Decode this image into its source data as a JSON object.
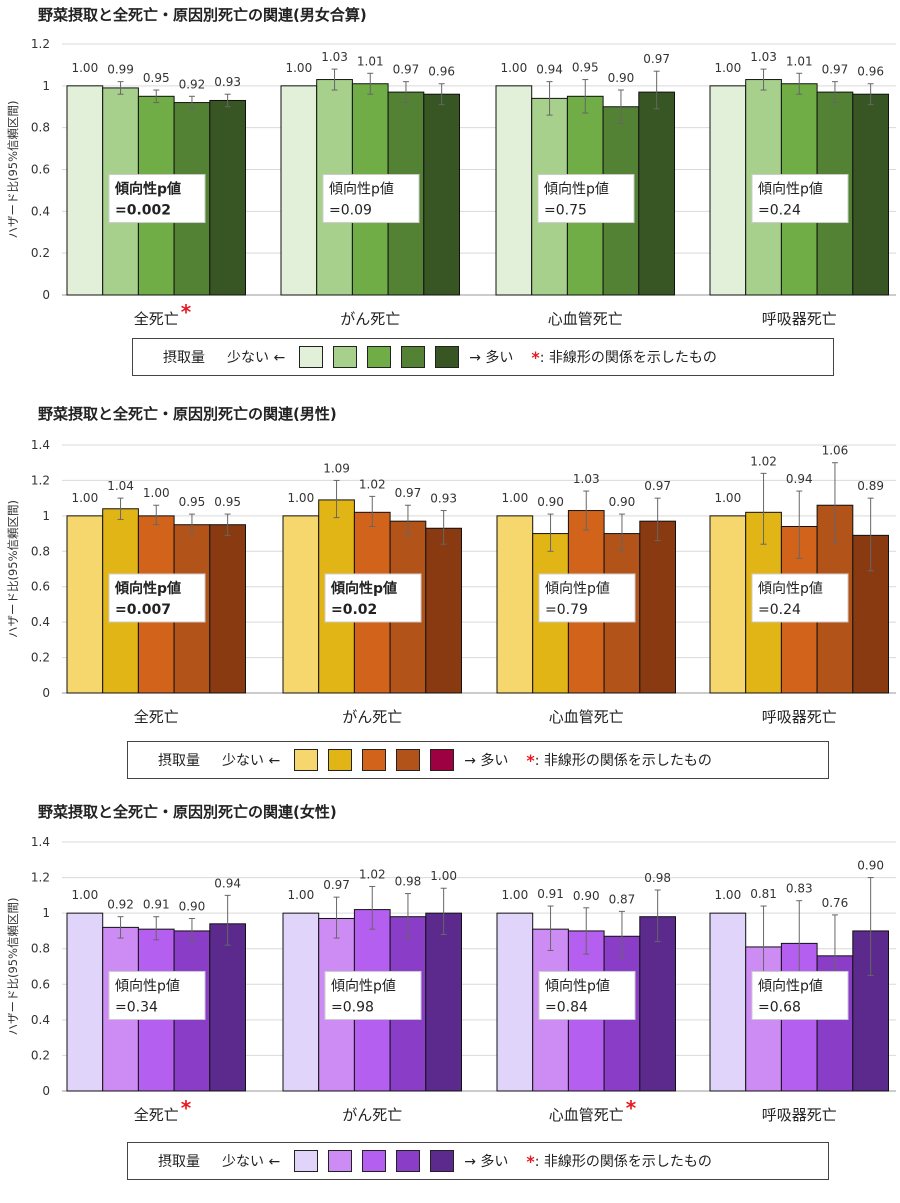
{
  "panels": [
    {
      "title": "野菜摂取と全死亡・原因別死亡の関連(男女合算)",
      "ylabel": "ハザード比(95%信頼区間)",
      "colors": [
        "#e2efd9",
        "#a8d08d",
        "#70ad47",
        "#548235",
        "#375623"
      ],
      "legend": {
        "label": "摂取量",
        "low": "少ない ←",
        "high": "→ 多い",
        "star": "*",
        "note": ": 非線形の関係を示したもの"
      },
      "chart_data": {
        "type": "bar",
        "categories": [
          "全死亡",
          "がん死亡",
          "心血管死亡",
          "呼吸器死亡"
        ],
        "ylim": [
          0,
          1.2
        ],
        "yticks": [
          "0",
          "0.2",
          "0.4",
          "0.6",
          "0.8",
          "1",
          "1.2"
        ],
        "values": [
          [
            1.0,
            0.99,
            0.95,
            0.92,
            0.93
          ],
          [
            1.0,
            1.03,
            1.01,
            0.97,
            0.96
          ],
          [
            1.0,
            0.94,
            0.95,
            0.9,
            0.97
          ],
          [
            1.0,
            1.03,
            1.01,
            0.97,
            0.96
          ]
        ],
        "labels": [
          [
            "1.00",
            "0.99",
            "0.95",
            "0.92",
            "0.93"
          ],
          [
            "1.00",
            "1.03",
            "1.01",
            "0.97",
            "0.96"
          ],
          [
            "1.00",
            "0.94",
            "0.95",
            "0.90",
            "0.97"
          ],
          [
            "1.00",
            "1.03",
            "1.01",
            "0.97",
            "0.96"
          ]
        ],
        "ci_low": [
          [
            null,
            0.96,
            0.92,
            0.89,
            0.9
          ],
          [
            null,
            0.98,
            0.96,
            0.92,
            0.91
          ],
          [
            null,
            0.86,
            0.87,
            0.82,
            0.89
          ],
          [
            null,
            0.98,
            0.96,
            0.92,
            0.91
          ]
        ],
        "ci_high": [
          [
            null,
            1.02,
            0.98,
            0.95,
            0.96
          ],
          [
            null,
            1.08,
            1.06,
            1.02,
            1.01
          ],
          [
            null,
            1.02,
            1.03,
            0.98,
            1.07
          ],
          [
            null,
            1.08,
            1.06,
            1.02,
            1.01
          ]
        ],
        "trend": [
          {
            "label": "傾向性p値",
            "value": "=0.002",
            "bold": true
          },
          {
            "label": "傾向性p値",
            "value": "=0.09",
            "bold": false
          },
          {
            "label": "傾向性p値",
            "value": "=0.75",
            "bold": false
          },
          {
            "label": "傾向性p値",
            "value": "=0.24",
            "bold": false
          }
        ],
        "nonlinear": [
          true,
          false,
          false,
          false
        ]
      }
    },
    {
      "title": "野菜摂取と全死亡・原因別死亡の関連(男性)",
      "ylabel": "ハザード比(95%信頼区間)",
      "colors": [
        "#f5d76e",
        "#e2b516",
        "#d2631b",
        "#b2531a",
        "#8a3a10"
      ],
      "legend_colors": [
        "#f5d76e",
        "#e2b516",
        "#d2631b",
        "#b2531a",
        "#9e0142"
      ],
      "legend": {
        "label": "摂取量",
        "low": "少ない ←",
        "high": "→ 多い",
        "star": "*",
        "note": ": 非線形の関係を示したもの"
      },
      "chart_data": {
        "type": "bar",
        "categories": [
          "全死亡",
          "がん死亡",
          "心血管死亡",
          "呼吸器死亡"
        ],
        "ylim": [
          0,
          1.4
        ],
        "yticks": [
          "0",
          "0.2",
          "0.4",
          "0.6",
          "0.8",
          "1",
          "1.2",
          "1.4"
        ],
        "values": [
          [
            1.0,
            1.04,
            1.0,
            0.95,
            0.95
          ],
          [
            1.0,
            1.09,
            1.02,
            0.97,
            0.93
          ],
          [
            1.0,
            0.9,
            1.03,
            0.9,
            0.97
          ],
          [
            1.0,
            1.02,
            0.94,
            1.06,
            0.89
          ]
        ],
        "labels": [
          [
            "1.00",
            "1.04",
            "1.00",
            "0.95",
            "0.95"
          ],
          [
            "1.00",
            "1.09",
            "1.02",
            "0.97",
            "0.93"
          ],
          [
            "1.00",
            "0.90",
            "1.03",
            "0.90",
            "0.97"
          ],
          [
            "1.00",
            "1.02",
            "0.94",
            "1.06",
            "0.89"
          ]
        ],
        "ci_low": [
          [
            null,
            0.98,
            0.95,
            0.9,
            0.89
          ],
          [
            null,
            0.99,
            0.94,
            0.89,
            0.84
          ],
          [
            null,
            0.8,
            0.92,
            0.8,
            0.86
          ],
          [
            null,
            0.84,
            0.76,
            0.85,
            0.69
          ]
        ],
        "ci_high": [
          [
            null,
            1.1,
            1.06,
            1.01,
            1.01
          ],
          [
            null,
            1.2,
            1.11,
            1.06,
            1.03
          ],
          [
            null,
            1.01,
            1.14,
            1.01,
            1.1
          ],
          [
            null,
            1.24,
            1.14,
            1.3,
            1.1
          ]
        ],
        "trend": [
          {
            "label": "傾向性p値",
            "value": "=0.007",
            "bold": true
          },
          {
            "label": "傾向性p値",
            "value": "=0.02",
            "bold": true
          },
          {
            "label": "傾向性p値",
            "value": "=0.79",
            "bold": false
          },
          {
            "label": "傾向性p値",
            "value": "=0.24",
            "bold": false
          }
        ],
        "nonlinear": [
          false,
          false,
          false,
          false
        ]
      }
    },
    {
      "title": "野菜摂取と全死亡・原因別死亡の関連(女性)",
      "ylabel": "ハザード比(95%信頼区間)",
      "colors": [
        "#e0d4fb",
        "#cc8cf4",
        "#b55ff0",
        "#8a3ec8",
        "#5b2a8c"
      ],
      "legend": {
        "label": "摂取量",
        "low": "少ない ←",
        "high": "→ 多い",
        "star": "*",
        "note": ": 非線形の関係を示したもの"
      },
      "chart_data": {
        "type": "bar",
        "categories": [
          "全死亡",
          "がん死亡",
          "心血管死亡",
          "呼吸器死亡"
        ],
        "ylim": [
          0,
          1.4
        ],
        "yticks": [
          "0",
          "0.2",
          "0.4",
          "0.6",
          "0.8",
          "1",
          "1.2",
          "1.4"
        ],
        "values": [
          [
            1.0,
            0.92,
            0.91,
            0.9,
            0.94
          ],
          [
            1.0,
            0.97,
            1.02,
            0.98,
            1.0
          ],
          [
            1.0,
            0.91,
            0.9,
            0.87,
            0.98
          ],
          [
            1.0,
            0.81,
            0.83,
            0.76,
            0.9
          ]
        ],
        "labels": [
          [
            "1.00",
            "0.92",
            "0.91",
            "0.90",
            "0.94"
          ],
          [
            "1.00",
            "0.97",
            "1.02",
            "0.98",
            "1.00"
          ],
          [
            "1.00",
            "0.91",
            "0.90",
            "0.87",
            "0.98"
          ],
          [
            "1.00",
            "0.81",
            "0.83",
            "0.76",
            "0.90"
          ]
        ],
        "ci_low": [
          [
            null,
            0.86,
            0.85,
            0.84,
            0.82
          ],
          [
            null,
            0.86,
            0.91,
            0.86,
            0.88
          ],
          [
            null,
            0.79,
            0.77,
            0.75,
            0.84
          ],
          [
            null,
            0.62,
            0.63,
            0.58,
            0.65
          ]
        ],
        "ci_high": [
          [
            null,
            0.98,
            0.98,
            0.97,
            1.1
          ],
          [
            null,
            1.09,
            1.15,
            1.11,
            1.14
          ],
          [
            null,
            1.04,
            1.03,
            1.01,
            1.13
          ],
          [
            null,
            1.04,
            1.07,
            0.99,
            1.2
          ]
        ],
        "trend": [
          {
            "label": "傾向性p値",
            "value": "=0.34",
            "bold": false
          },
          {
            "label": "傾向性p値",
            "value": "=0.98",
            "bold": false
          },
          {
            "label": "傾向性p値",
            "value": "=0.84",
            "bold": false
          },
          {
            "label": "傾向性p値",
            "value": "=0.68",
            "bold": false
          }
        ],
        "nonlinear": [
          true,
          false,
          true,
          false
        ]
      }
    }
  ]
}
